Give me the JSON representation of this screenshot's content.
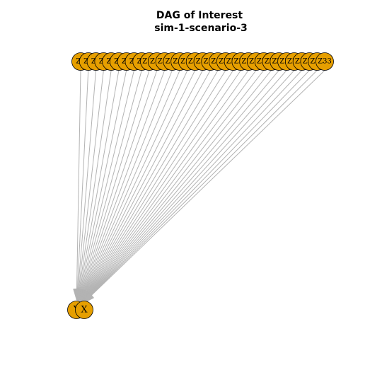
{
  "title": {
    "line1": "DAG of Interest",
    "line2": "sim-1-scenario-3"
  },
  "graph": {
    "source_nodes": [
      "Z1",
      "Z2",
      "Z3",
      "Z4",
      "Z5",
      "Z6",
      "Z7",
      "Z8",
      "Z9",
      "Z10",
      "Z11",
      "Z12",
      "Z13",
      "Z14",
      "Z15",
      "Z16",
      "Z17",
      "Z18",
      "Z19",
      "Z20",
      "Z21",
      "Z22",
      "Z23",
      "Z24",
      "Z25",
      "Z26",
      "Z27",
      "Z28",
      "Z29",
      "Z30",
      "Z31",
      "Z32",
      "Z33"
    ],
    "sink_nodes": [
      "Y",
      "X"
    ],
    "edge_target": "Y",
    "node_color": "#E69F00",
    "edge_color": "#b3b3b3"
  }
}
